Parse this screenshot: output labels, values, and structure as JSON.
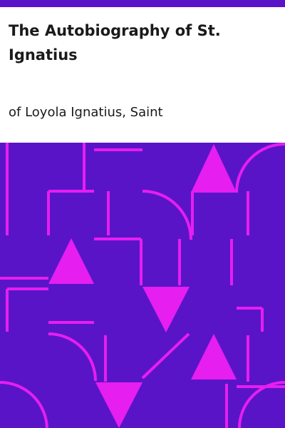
{
  "cover": {
    "title": "The Autobiography of St. Ignatius",
    "author": "of Loyola Ignatius, Saint"
  },
  "colors": {
    "background": "#ffffff",
    "accent": "#5a14c8",
    "pattern": "#e61ef0",
    "text": "#1a1a1a"
  }
}
